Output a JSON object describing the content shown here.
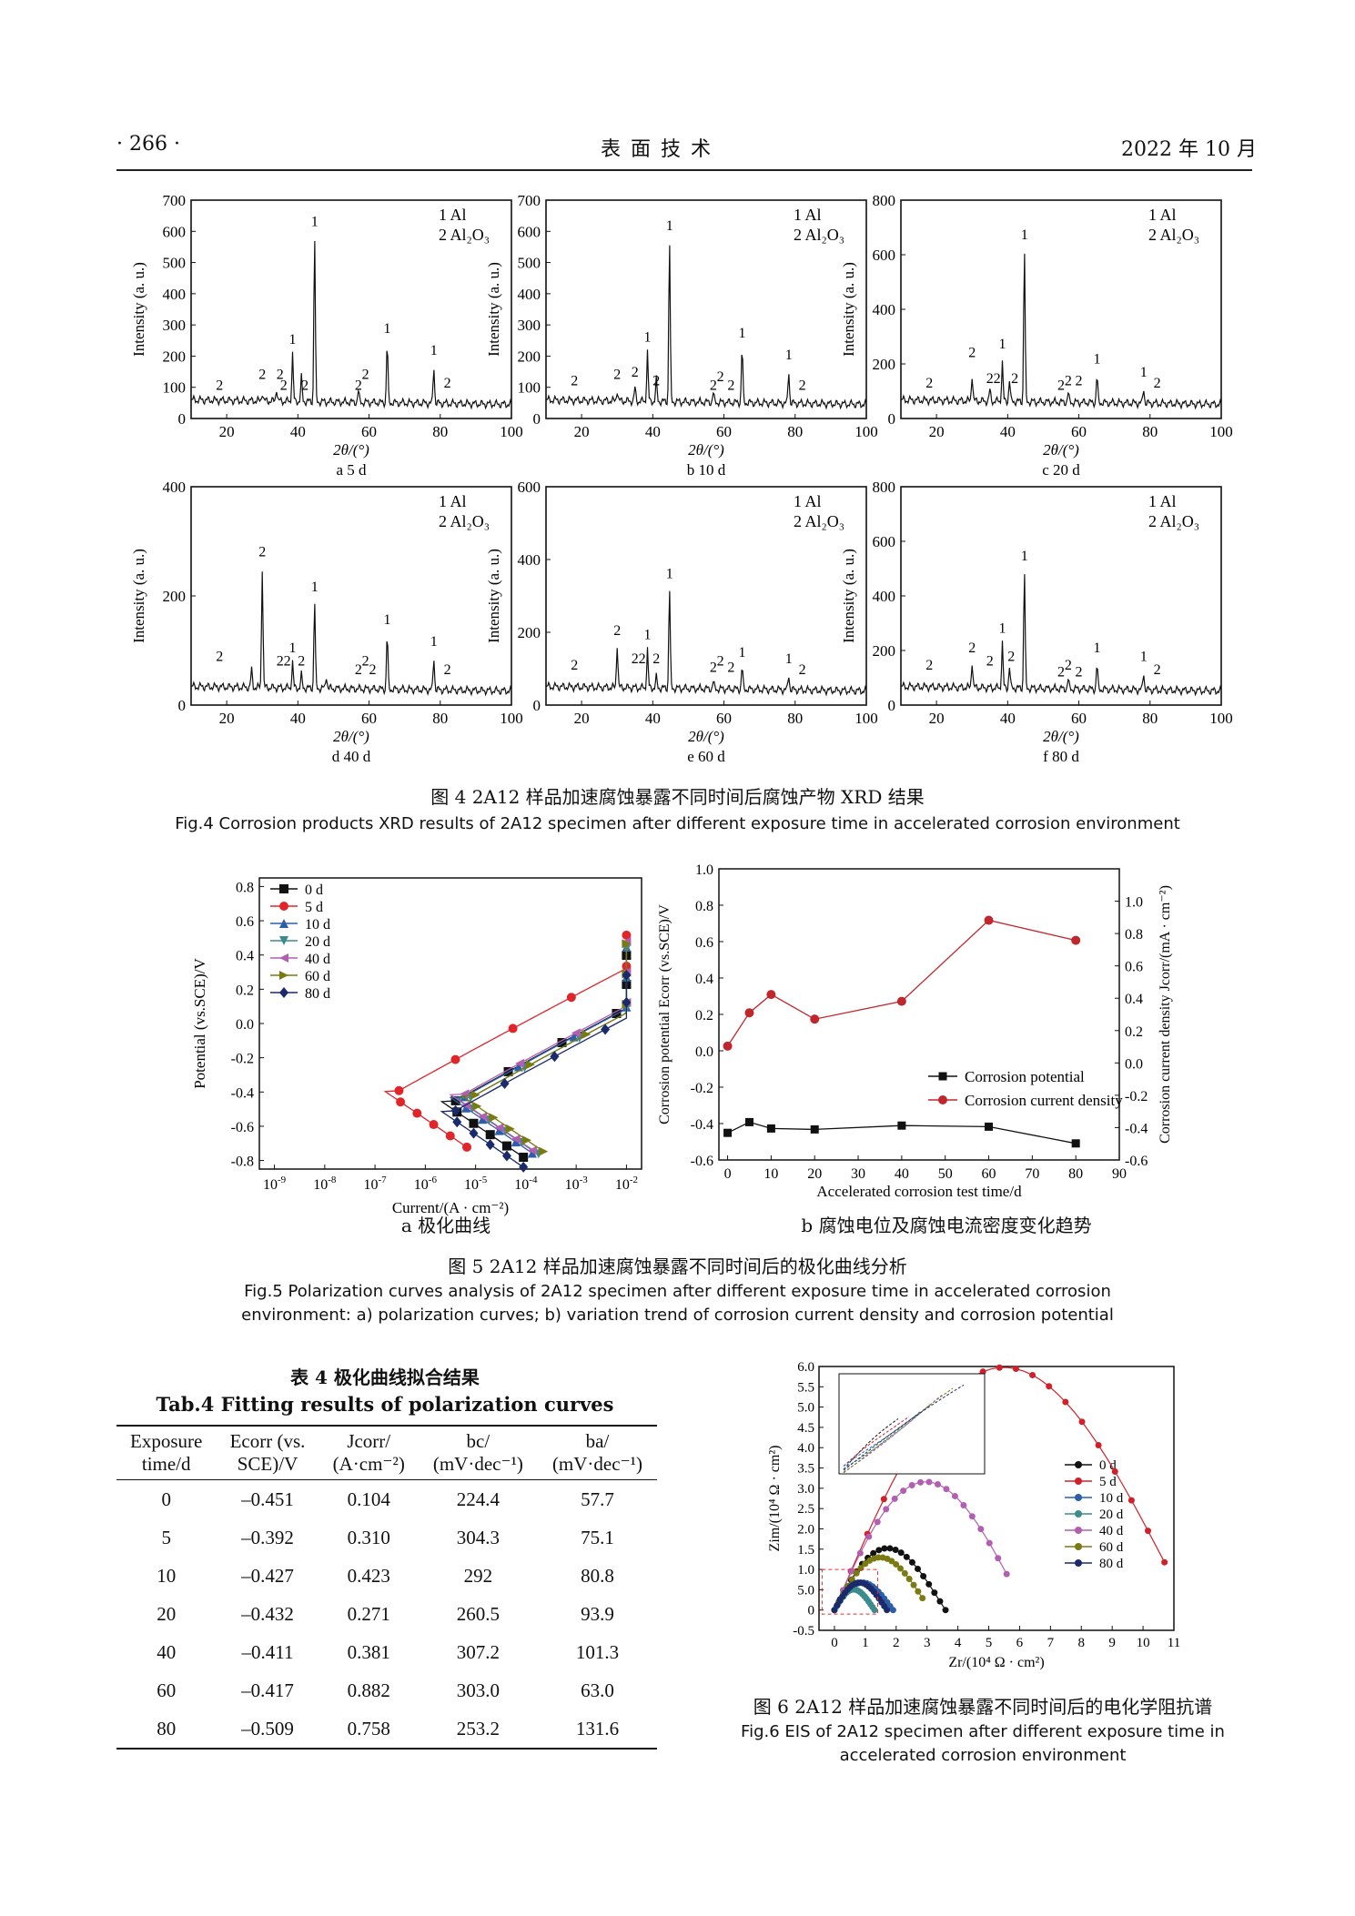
{
  "header": {
    "page": "· 266 ·",
    "journal": "表 面 技 术",
    "date": "2022 年 10 月"
  },
  "fig4": {
    "caption_cn": "图 4 2A12 样品加速腐蚀暴露不同时间后腐蚀产物 XRD 结果",
    "caption_en": "Fig.4 Corrosion products XRD results of 2A12 specimen after different exposure time in accelerated corrosion environment",
    "legend": [
      "1 Al",
      "2 Al₂O₃"
    ],
    "ylabel": "Intensity (a. u.)",
    "xlabel": "2θ/(°)",
    "panels": [
      {
        "label": "a 5 d",
        "ylim": [
          0,
          700
        ],
        "yticks": [
          0,
          100,
          200,
          300,
          400,
          500,
          600,
          700
        ]
      },
      {
        "label": "b 10 d",
        "ylim": [
          0,
          700
        ],
        "yticks": [
          0,
          100,
          200,
          300,
          400,
          500,
          600,
          700
        ]
      },
      {
        "label": "c 20 d",
        "ylim": [
          0,
          800
        ],
        "yticks": [
          0,
          200,
          400,
          600,
          800
        ]
      },
      {
        "label": "d 40 d",
        "ylim": [
          0,
          400
        ],
        "yticks": [
          0,
          200,
          400
        ]
      },
      {
        "label": "e 60 d",
        "ylim": [
          0,
          600
        ],
        "yticks": [
          0,
          200,
          400,
          600
        ]
      },
      {
        "label": "f 80 d",
        "ylim": [
          0,
          800
        ],
        "yticks": [
          0,
          200,
          400,
          600,
          800
        ]
      }
    ]
  },
  "fig5": {
    "caption_cn": "图 5 2A12 样品加速腐蚀暴露不同时间后的极化曲线分析",
    "caption_en_1": "Fig.5 Polarization curves analysis of 2A12 specimen after different exposure time in accelerated corrosion",
    "caption_en_2": "environment: a) polarization curves; b) variation trend of corrosion current density and corrosion potential",
    "a_label": "a 极化曲线",
    "b_label": "b 腐蚀电位及腐蚀电流密度变化趋势",
    "a_ylabel": "Potential (vs.SCE)/V",
    "a_xlabel": "Current/(A · cm⁻²)",
    "b_xlabel": "Accelerated corrosion test time/d",
    "b_ylabel_left": "Corrosion potential Ecorr (vs.SCE)/V",
    "b_ylabel_right": "Corrosion current density Jcorr/(mA · cm⁻²)",
    "b_legend": [
      "Corrosion potential",
      "Corrosion current density"
    ]
  },
  "chart_data": [
    {
      "type": "line",
      "title": "a 极化曲线",
      "xlabel": "Current/(A · cm⁻²)",
      "ylabel": "Potential (vs.SCE)/V",
      "xscale": "log",
      "xlim": [
        1e-09,
        0.01
      ],
      "ylim": [
        -0.8,
        0.8
      ],
      "series": [
        {
          "name": "0 d",
          "color": "#111111",
          "Ecorr": -0.451
        },
        {
          "name": "5 d",
          "color": "#e0262b",
          "Ecorr": -0.392
        },
        {
          "name": "10 d",
          "color": "#2c5fa8",
          "Ecorr": -0.427
        },
        {
          "name": "20 d",
          "color": "#3d8c8c",
          "Ecorr": -0.432
        },
        {
          "name": "40 d",
          "color": "#b25fb2",
          "Ecorr": -0.411
        },
        {
          "name": "60 d",
          "color": "#7a7a12",
          "Ecorr": -0.417
        },
        {
          "name": "80 d",
          "color": "#1b2a6b",
          "Ecorr": -0.509
        }
      ]
    },
    {
      "type": "line",
      "title": "b 腐蚀电位及腐蚀电流密度变化趋势",
      "x": [
        0,
        5,
        10,
        20,
        40,
        60,
        80
      ],
      "xlim": [
        0,
        90
      ],
      "series": [
        {
          "name": "Corrosion potential",
          "axis": "left",
          "color": "#111111",
          "values": [
            -0.451,
            -0.392,
            -0.427,
            -0.432,
            -0.411,
            -0.417,
            -0.509
          ]
        },
        {
          "name": "Corrosion current density",
          "axis": "right",
          "color": "#c0272d",
          "values": [
            0.104,
            0.31,
            0.423,
            0.271,
            0.381,
            0.882,
            0.758
          ]
        }
      ],
      "ylim_left": [
        -0.6,
        1.0
      ],
      "ylim_right": [
        -0.6,
        1.2
      ]
    },
    {
      "type": "scatter",
      "title": "图 6 EIS",
      "xlabel": "Zr/(10⁴ Ω · cm²)",
      "ylabel": "Zim/(10⁴ Ω · cm²)",
      "xlim": [
        -0.5,
        11
      ],
      "ylim": [
        -0.5,
        6.0
      ],
      "series": [
        {
          "name": "0 d",
          "color": "#111111"
        },
        {
          "name": "5 d",
          "color": "#d0202a"
        },
        {
          "name": "10 d",
          "color": "#2c5fa8"
        },
        {
          "name": "20 d",
          "color": "#3d8c8c"
        },
        {
          "name": "40 d",
          "color": "#b25fb2"
        },
        {
          "name": "60 d",
          "color": "#7a7a12"
        },
        {
          "name": "80 d",
          "color": "#1b2a6b"
        }
      ]
    }
  ],
  "table4": {
    "title_cn": "表 4 极化曲线拟合结果",
    "title_en": "Tab.4 Fitting results of polarization curves",
    "headers": [
      [
        "Exposure",
        "time/d"
      ],
      [
        "Ecorr (vs.",
        "SCE)/V"
      ],
      [
        "Jcorr/",
        "(A·cm⁻²)"
      ],
      [
        "bc/",
        "(mV·dec⁻¹)"
      ],
      [
        "ba/",
        "(mV·dec⁻¹)"
      ]
    ],
    "rows": [
      [
        "0",
        "–0.451",
        "0.104",
        "224.4",
        "57.7"
      ],
      [
        "5",
        "–0.392",
        "0.310",
        "304.3",
        "75.1"
      ],
      [
        "10",
        "–0.427",
        "0.423",
        "292",
        "80.8"
      ],
      [
        "20",
        "–0.432",
        "0.271",
        "260.5",
        "93.9"
      ],
      [
        "40",
        "–0.411",
        "0.381",
        "307.2",
        "101.3"
      ],
      [
        "60",
        "–0.417",
        "0.882",
        "303.0",
        "63.0"
      ],
      [
        "80",
        "–0.509",
        "0.758",
        "253.2",
        "131.6"
      ]
    ]
  },
  "fig6": {
    "caption_cn": "图 6 2A12 样品加速腐蚀暴露不同时间后的电化学阻抗谱",
    "caption_en_1": "Fig.6 EIS of 2A12 specimen after different exposure time in",
    "caption_en_2": "accelerated corrosion environment",
    "xlabel": "Zr/(10⁴ Ω · cm²)",
    "ylabel": "Zim/(10⁴ Ω · cm²)"
  }
}
